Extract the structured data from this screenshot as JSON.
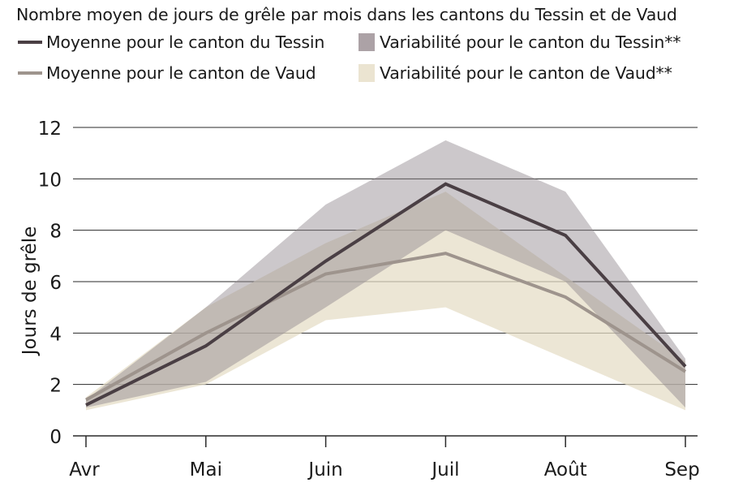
{
  "chart_data": {
    "type": "line",
    "title": "Nombre moyen de jours de grêle par mois dans les cantons du Tessin et de Vaud",
    "xlabel": "",
    "ylabel": "Jours de grêle",
    "categories": [
      "Avr",
      "Mai",
      "Juin",
      "Juil",
      "Août",
      "Sep"
    ],
    "ylim": [
      0,
      12
    ],
    "yticks": [
      0,
      2,
      4,
      6,
      8,
      10,
      12
    ],
    "grid": true,
    "legend_position": "top",
    "series": [
      {
        "name": "Moyenne pour le canton du Tessin",
        "kind": "line",
        "color": "#4a3f44",
        "values": [
          1.2,
          3.5,
          6.8,
          9.8,
          7.8,
          2.7
        ]
      },
      {
        "name": "Moyenne pour le canton de Vaud",
        "kind": "line",
        "color": "#9e948d",
        "values": [
          1.4,
          4.0,
          6.3,
          7.1,
          5.4,
          2.5
        ]
      },
      {
        "name": "Variabilité pour le canton du Tessin**",
        "kind": "band",
        "color": "#8f858c",
        "opacity": 0.45,
        "lower": [
          1.1,
          2.1,
          5.0,
          8.0,
          6.0,
          1.1
        ],
        "upper": [
          1.4,
          5.0,
          9.0,
          11.5,
          9.5,
          3.0
        ]
      },
      {
        "name": "Variabilité pour le canton de Vaud**",
        "kind": "band",
        "color": "#e4dcc5",
        "opacity": 0.72,
        "lower": [
          1.0,
          2.0,
          4.5,
          5.0,
          3.0,
          1.0
        ],
        "upper": [
          1.5,
          5.0,
          7.5,
          9.5,
          6.2,
          2.9
        ]
      }
    ],
    "legend": [
      {
        "label": "Moyenne pour le canton du Tessin",
        "type": "line",
        "color": "#4a3f44"
      },
      {
        "label": "Variabilité pour le canton du Tessin**",
        "type": "swatch",
        "color": "#aca2a6"
      },
      {
        "label": "Moyenne pour le canton de Vaud",
        "type": "line",
        "color": "#9e948d"
      },
      {
        "label": "Variabilité pour le canton de Vaud**",
        "type": "swatch",
        "color": "#ebe4d1"
      }
    ]
  }
}
